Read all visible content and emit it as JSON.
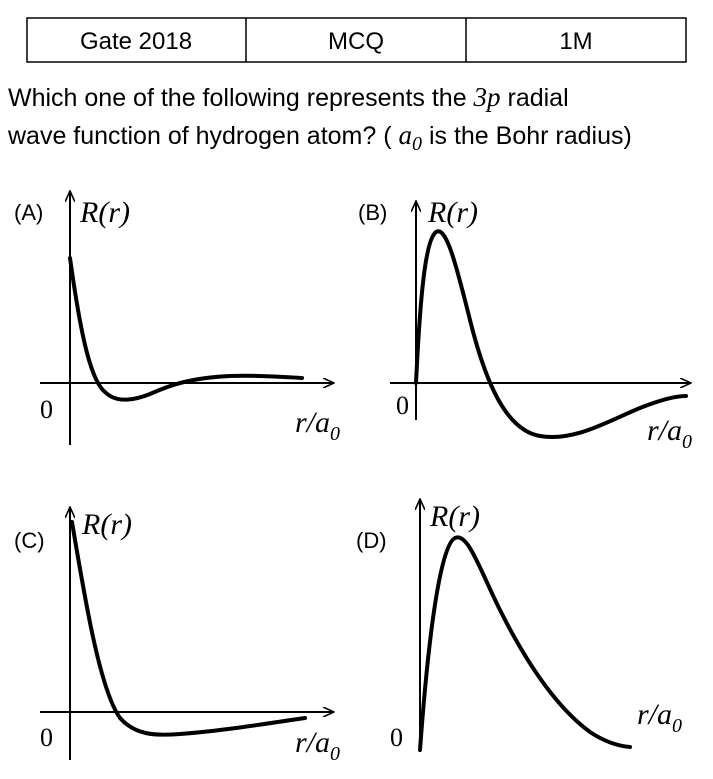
{
  "header": {
    "cells": [
      "Gate 2018",
      "MCQ",
      "1M"
    ]
  },
  "question": {
    "line1": [
      "Which one of the following represents the ",
      "3p",
      " radial"
    ],
    "line2": [
      "wave function of hydrogen atom? ( ",
      "a",
      "0",
      " is the Bohr radius)"
    ]
  },
  "options": [
    {
      "label": "(A)",
      "y_axis": "R(r)",
      "origin": "0",
      "x_axis": {
        "main": "r/a",
        "sub": "0"
      }
    },
    {
      "label": "(B)",
      "y_axis": "R(r)",
      "origin": "0",
      "x_axis": {
        "main": "r/a",
        "sub": "0"
      }
    },
    {
      "label": "(C)",
      "y_axis": "R(r)",
      "origin": "0",
      "x_axis": {
        "main": "r/a",
        "sub": "0"
      }
    },
    {
      "label": "(D)",
      "y_axis": "R(r)",
      "origin": "0",
      "x_axis": {
        "main": "r/a",
        "sub": "0"
      }
    }
  ]
}
